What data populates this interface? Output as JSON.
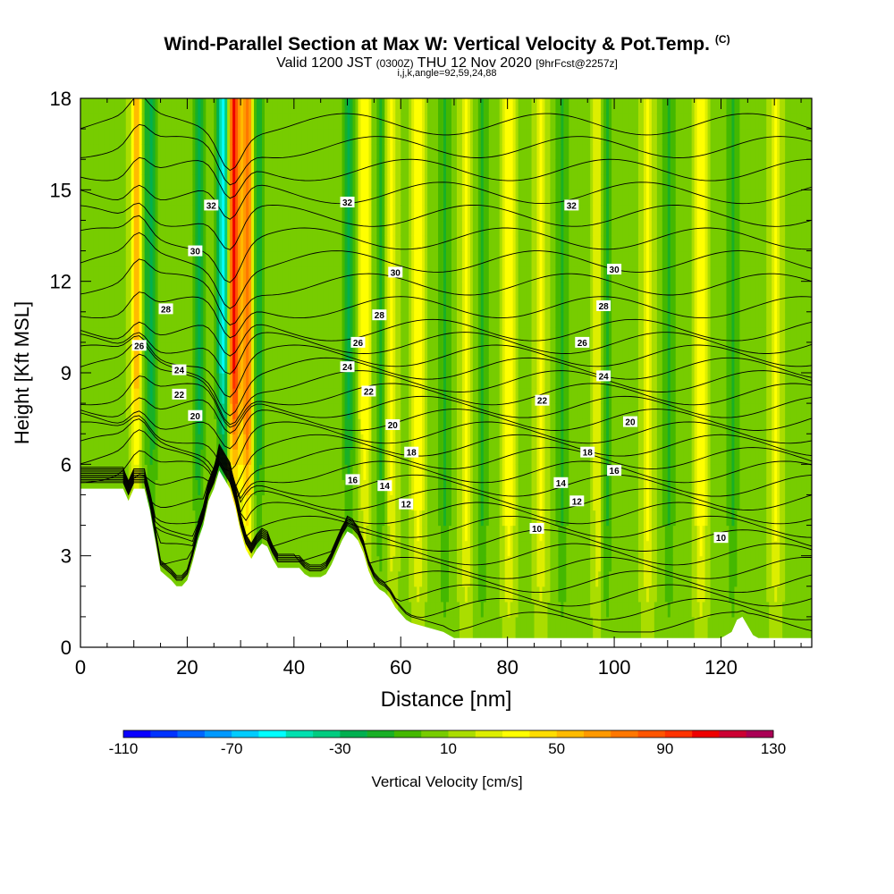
{
  "header": {
    "title": "Wind-Parallel Section at Max W: Vertical Velocity & Pot.Temp.",
    "copyright": "(C)",
    "valid_prefix": "Valid 1200 JST",
    "valid_utc": "(0300Z)",
    "valid_suffix": "THU 12 Nov 2020",
    "forecast": "[9hrFcst@2257z]",
    "indices": "i,j,k,angle=92,59,24,88"
  },
  "chart_data": {
    "type": "heatmap",
    "xlabel": "Distance [nm]",
    "ylabel": "Height [Kft MSL]",
    "xlim": [
      0,
      137
    ],
    "ylim": [
      0,
      18
    ],
    "x_ticks": [
      0,
      20,
      40,
      60,
      80,
      100,
      120
    ],
    "y_ticks": [
      0,
      3,
      6,
      9,
      12,
      15,
      18
    ],
    "colorbar": {
      "label": "Vertical Velocity [cm/s]",
      "range": [
        -110,
        130
      ],
      "step": 10,
      "tick_labels": [
        "-110",
        "-70",
        "-30",
        "10",
        "50",
        "90",
        "130"
      ],
      "colors": [
        "#0a00ff",
        "#0033ff",
        "#0066ff",
        "#0099ff",
        "#00ccff",
        "#00ffff",
        "#00e0b0",
        "#00cc80",
        "#00b050",
        "#19b026",
        "#44b800",
        "#77cc00",
        "#aadd00",
        "#ddee00",
        "#ffff00",
        "#ffdd00",
        "#ffbb00",
        "#ff9900",
        "#ff7700",
        "#ff5500",
        "#ff3300",
        "#ee0000",
        "#cc0033",
        "#aa0055",
        "#660099"
      ]
    },
    "terrain_kft": [
      [
        0,
        5.2
      ],
      [
        8,
        5.2
      ],
      [
        9,
        4.8
      ],
      [
        10,
        5.2
      ],
      [
        12,
        5.2
      ],
      [
        13,
        4.5
      ],
      [
        14,
        3.5
      ],
      [
        15,
        2.5
      ],
      [
        17,
        2.2
      ],
      [
        18,
        2
      ],
      [
        19,
        2
      ],
      [
        20,
        2.2
      ],
      [
        21,
        2.8
      ],
      [
        22,
        3.5
      ],
      [
        23,
        4
      ],
      [
        24,
        4.8
      ],
      [
        25,
        5.2
      ],
      [
        26,
        5.8
      ],
      [
        27,
        5.5
      ],
      [
        28,
        5.2
      ],
      [
        29,
        4.6
      ],
      [
        30,
        3.8
      ],
      [
        31,
        3.2
      ],
      [
        32,
        2.9
      ],
      [
        33,
        3.2
      ],
      [
        34,
        3.4
      ],
      [
        35,
        3.3
      ],
      [
        36,
        2.9
      ],
      [
        37,
        2.6
      ],
      [
        39,
        2.6
      ],
      [
        41,
        2.6
      ],
      [
        42,
        2.4
      ],
      [
        43,
        2.3
      ],
      [
        44,
        2.3
      ],
      [
        45,
        2.3
      ],
      [
        46,
        2.4
      ],
      [
        47,
        2.7
      ],
      [
        48,
        3.1
      ],
      [
        49,
        3.5
      ],
      [
        50,
        3.8
      ],
      [
        51,
        3.7
      ],
      [
        52,
        3.5
      ],
      [
        53,
        3.1
      ],
      [
        54,
        2.5
      ],
      [
        55,
        2.1
      ],
      [
        56,
        1.9
      ],
      [
        57,
        1.8
      ],
      [
        58,
        1.6
      ],
      [
        59,
        1.3
      ],
      [
        60,
        1.1
      ],
      [
        61,
        0.9
      ],
      [
        62,
        0.8
      ],
      [
        64,
        0.7
      ],
      [
        66,
        0.6
      ],
      [
        68,
        0.5
      ],
      [
        70,
        0.3
      ],
      [
        80,
        0.3
      ],
      [
        100,
        0.3
      ],
      [
        120,
        0.3
      ],
      [
        122,
        0.5
      ],
      [
        123,
        0.9
      ],
      [
        124,
        1
      ],
      [
        125,
        0.7
      ],
      [
        126,
        0.4
      ],
      [
        127,
        0.3
      ],
      [
        137,
        0.3
      ]
    ],
    "updrafts": [
      {
        "x": 10.5,
        "v": 80
      },
      {
        "x": 28.5,
        "v": 95
      },
      {
        "x": 31,
        "v": 70
      },
      {
        "x": 53,
        "v": 30
      },
      {
        "x": 58,
        "v": 25
      },
      {
        "x": 63,
        "v": 30
      },
      {
        "x": 72,
        "v": 25
      },
      {
        "x": 80,
        "v": 30
      },
      {
        "x": 86,
        "v": 25
      },
      {
        "x": 97,
        "v": 30
      },
      {
        "x": 106,
        "v": 25
      },
      {
        "x": 116,
        "v": 30
      },
      {
        "x": 130,
        "v": 25
      }
    ],
    "downdrafts": [
      {
        "x": 11,
        "v": -40
      },
      {
        "x": 13,
        "v": -30
      },
      {
        "x": 22,
        "v": -30
      },
      {
        "x": 26.5,
        "v": -70
      },
      {
        "x": 33,
        "v": -30
      },
      {
        "x": 50,
        "v": -30
      },
      {
        "x": 56,
        "v": -20
      },
      {
        "x": 68,
        "v": -20
      },
      {
        "x": 75,
        "v": -20
      },
      {
        "x": 90,
        "v": -20
      },
      {
        "x": 98,
        "v": -30
      },
      {
        "x": 110,
        "v": -20
      },
      {
        "x": 122,
        "v": -20
      }
    ],
    "isentrope_labels": [
      {
        "x": 24.5,
        "y": 14.5,
        "text": "32"
      },
      {
        "x": 50,
        "y": 14.6,
        "text": "32"
      },
      {
        "x": 92,
        "y": 14.5,
        "text": "32"
      },
      {
        "x": 21.5,
        "y": 13,
        "text": "30"
      },
      {
        "x": 59,
        "y": 12.3,
        "text": "30"
      },
      {
        "x": 100,
        "y": 12.4,
        "text": "30"
      },
      {
        "x": 16,
        "y": 11.1,
        "text": "28"
      },
      {
        "x": 56,
        "y": 10.9,
        "text": "28"
      },
      {
        "x": 98,
        "y": 11.2,
        "text": "28"
      },
      {
        "x": 11,
        "y": 9.9,
        "text": "26"
      },
      {
        "x": 52,
        "y": 10,
        "text": "26"
      },
      {
        "x": 94,
        "y": 10,
        "text": "26"
      },
      {
        "x": 18.5,
        "y": 9.1,
        "text": "24"
      },
      {
        "x": 50,
        "y": 9.2,
        "text": "24"
      },
      {
        "x": 98,
        "y": 8.9,
        "text": "24"
      },
      {
        "x": 18.5,
        "y": 8.3,
        "text": "22"
      },
      {
        "x": 54,
        "y": 8.4,
        "text": "22"
      },
      {
        "x": 86.5,
        "y": 8.1,
        "text": "22"
      },
      {
        "x": 21.5,
        "y": 7.6,
        "text": "20"
      },
      {
        "x": 58.5,
        "y": 7.3,
        "text": "20"
      },
      {
        "x": 103,
        "y": 7.4,
        "text": "20"
      },
      {
        "x": 62,
        "y": 6.4,
        "text": "18"
      },
      {
        "x": 95,
        "y": 6.4,
        "text": "18"
      },
      {
        "x": 51,
        "y": 5.5,
        "text": "16"
      },
      {
        "x": 100,
        "y": 5.8,
        "text": "16"
      },
      {
        "x": 57,
        "y": 5.3,
        "text": "14"
      },
      {
        "x": 90,
        "y": 5.4,
        "text": "14"
      },
      {
        "x": 61,
        "y": 4.7,
        "text": "12"
      },
      {
        "x": 93,
        "y": 4.8,
        "text": "12"
      },
      {
        "x": 85.5,
        "y": 3.9,
        "text": "10"
      },
      {
        "x": 120,
        "y": 3.6,
        "text": "10"
      }
    ]
  }
}
